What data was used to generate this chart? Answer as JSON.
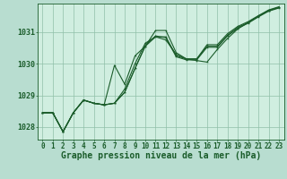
{
  "background_color": "#b8ddd0",
  "plot_bg_color": "#d0eee0",
  "grid_color": "#90c0a8",
  "line_color": "#1a5c2a",
  "xlabel": "Graphe pression niveau de la mer (hPa)",
  "xlim": [
    -0.5,
    23.5
  ],
  "ylim": [
    1027.6,
    1031.9
  ],
  "yticks": [
    1028,
    1029,
    1030,
    1031
  ],
  "xtick_labels": [
    "0",
    "1",
    "2",
    "3",
    "4",
    "5",
    "6",
    "7",
    "8",
    "9",
    "10",
    "11",
    "12",
    "13",
    "14",
    "15",
    "16",
    "17",
    "18",
    "19",
    "20",
    "21",
    "22",
    "23"
  ],
  "series1": [
    1028.45,
    1028.45,
    1027.85,
    1028.45,
    1028.85,
    1028.75,
    1028.7,
    1028.75,
    1029.1,
    1029.85,
    1030.55,
    1030.85,
    1030.85,
    1030.25,
    1030.15,
    1030.15,
    1030.55,
    1030.55,
    1030.9,
    1031.15,
    1031.3,
    1031.5,
    1031.68,
    1031.78
  ],
  "series2": [
    1028.45,
    1028.45,
    1027.85,
    1028.45,
    1028.85,
    1028.75,
    1028.7,
    1029.95,
    1029.35,
    1030.25,
    1030.55,
    1031.05,
    1031.05,
    1030.35,
    1030.15,
    1030.1,
    1030.05,
    1030.45,
    1030.8,
    1031.1,
    1031.3,
    1031.5,
    1031.68,
    1031.78
  ],
  "series3": [
    1028.45,
    1028.45,
    1027.85,
    1028.45,
    1028.85,
    1028.75,
    1028.7,
    1028.75,
    1029.2,
    1030.0,
    1030.65,
    1030.85,
    1030.75,
    1030.3,
    1030.15,
    1030.15,
    1030.6,
    1030.6,
    1030.95,
    1031.18,
    1031.33,
    1031.52,
    1031.7,
    1031.8
  ],
  "series4": [
    1028.45,
    1028.45,
    1027.85,
    1028.45,
    1028.85,
    1028.75,
    1028.7,
    1028.75,
    1029.1,
    1029.85,
    1030.58,
    1030.88,
    1030.82,
    1030.22,
    1030.12,
    1030.12,
    1030.52,
    1030.52,
    1030.88,
    1031.12,
    1031.28,
    1031.48,
    1031.66,
    1031.76
  ],
  "lw": 0.8,
  "ms": 2.0,
  "tick_fontsize": 5.5,
  "xlabel_fontsize": 7.0
}
